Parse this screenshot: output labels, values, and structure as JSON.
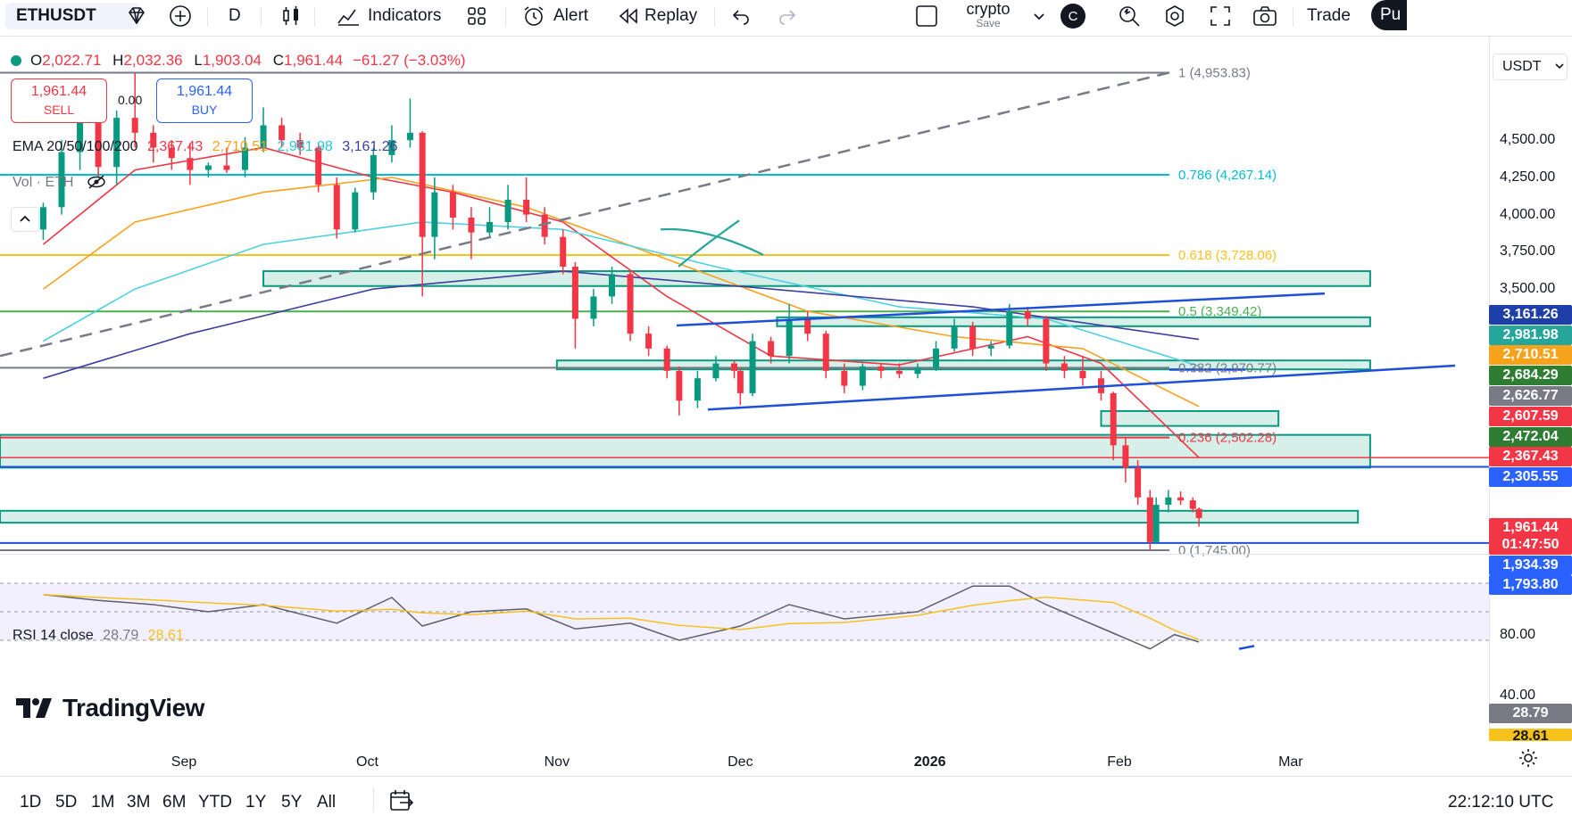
{
  "toolbar": {
    "symbol": "ETHUSDT",
    "interval": "D",
    "indicators_label": "Indicators",
    "alert_label": "Alert",
    "replay_label": "Replay",
    "layout_name": "crypto",
    "layout_status": "Save",
    "avatar_letter": "C",
    "trade_label": "Trade",
    "publish_label": "Pu"
  },
  "legend": {
    "ohlc": {
      "open_label": "O",
      "open": "2,022.71",
      "high_label": "H",
      "high": "2,032.36",
      "low_label": "L",
      "low": "1,903.04",
      "close_label": "C",
      "close": "1,961.44",
      "change": "−61.27 (−3.03%)"
    },
    "sell_price": "1,961.44",
    "sell_label": "SELL",
    "spread": "0.00",
    "buy_price": "1,961.44",
    "buy_label": "BUY",
    "ema_label": "EMA 20/50/100/200",
    "ema_values": [
      "2,367.43",
      "2,710.51",
      "2,981.98",
      "3,161.26"
    ],
    "vol_label": "Vol · ETH",
    "rsi_label": "RSI 14 close",
    "rsi_values": [
      "28.79",
      "28.61"
    ]
  },
  "quote_currency": "USDT",
  "price_ticks": [
    "4,500.00",
    "4,250.00",
    "4,000.00",
    "3,750.00",
    "3,500.00"
  ],
  "price_badges": [
    {
      "label": "3,161.26",
      "color": "#1e3fa8"
    },
    {
      "label": "2,981.98",
      "color": "#26a69a"
    },
    {
      "label": "2,710.51",
      "color": "#f7a21b"
    },
    {
      "label": "2,684.29",
      "color": "#2e7d32"
    },
    {
      "label": "2,626.77",
      "color": "#787b86"
    },
    {
      "label": "2,607.59",
      "color": "#f23645"
    },
    {
      "label": "2,472.04",
      "color": "#2e7d32"
    },
    {
      "label": "2,367.43",
      "color": "#f23645"
    },
    {
      "label": "2,305.55",
      "color": "#2962ff"
    },
    {
      "label": "1,961.44",
      "color": "#f23645"
    },
    {
      "label": "01:47:50",
      "color": "#f23645"
    },
    {
      "label": "1,934.39",
      "color": "#2962ff"
    },
    {
      "label": "1,793.80",
      "color": "#2962ff"
    }
  ],
  "fib_labels": [
    "1 (4,953.83)",
    "0.786 (4,267.14)",
    "0.618 (3,728.06)",
    "0.5 (3,349.42)",
    "0.382 (2,970.77)",
    "0.236 (2,502.28)",
    "0 (1,745.00)"
  ],
  "rsi_ticks": [
    "80.00",
    "40.00"
  ],
  "x_ticks": [
    "Sep",
    "Oct",
    "Nov",
    "Dec",
    "2026",
    "Feb",
    "Mar"
  ],
  "range_buttons": [
    "1D",
    "5D",
    "1M",
    "3M",
    "6M",
    "YTD",
    "1Y",
    "5Y",
    "All"
  ],
  "clock": "22:12:10 UTC",
  "brand": "TradingView",
  "colors": {
    "up": "#089981",
    "down": "#f23645",
    "ema20": "#f23645",
    "ema50": "#f7a21b",
    "ema100": "#4dd0e1",
    "ema200": "#3f3f9f",
    "fib_786": "#00bcd4",
    "fib_618": "#f7c21b",
    "fib_5": "#4caf50",
    "fib_236": "#f23645",
    "trend": "#1e4fd8",
    "zone_fill": "#d6efe9",
    "zone_border": "#089981",
    "rsi_line": "#5d606b",
    "rsi_ma": "#f7c21b"
  },
  "chart_data": {
    "type": "candlestick",
    "symbol": "ETHUSDT",
    "interval": "D",
    "ylim": [
      1700,
      4950
    ],
    "candles": [
      {
        "d": "2025-08-09",
        "o": 3900,
        "h": 4080,
        "l": 3830,
        "c": 4050
      },
      {
        "d": "2025-08-12",
        "o": 4050,
        "h": 4500,
        "l": 4000,
        "c": 4420
      },
      {
        "d": "2025-08-15",
        "o": 4420,
        "h": 4800,
        "l": 4300,
        "c": 4650
      },
      {
        "d": "2025-08-18",
        "o": 4650,
        "h": 4720,
        "l": 4250,
        "c": 4320
      },
      {
        "d": "2025-08-21",
        "o": 4320,
        "h": 4700,
        "l": 4200,
        "c": 4650
      },
      {
        "d": "2025-08-24",
        "o": 4650,
        "h": 4950,
        "l": 4450,
        "c": 4550
      },
      {
        "d": "2025-08-27",
        "o": 4550,
        "h": 4600,
        "l": 4350,
        "c": 4450
      },
      {
        "d": "2025-08-30",
        "o": 4450,
        "h": 4500,
        "l": 4300,
        "c": 4380
      },
      {
        "d": "2025-09-02",
        "o": 4380,
        "h": 4480,
        "l": 4200,
        "c": 4300
      },
      {
        "d": "2025-09-05",
        "o": 4300,
        "h": 4350,
        "l": 4250,
        "c": 4330
      },
      {
        "d": "2025-09-08",
        "o": 4330,
        "h": 4450,
        "l": 4280,
        "c": 4300
      },
      {
        "d": "2025-09-11",
        "o": 4300,
        "h": 4520,
        "l": 4250,
        "c": 4450
      },
      {
        "d": "2025-09-14",
        "o": 4450,
        "h": 4720,
        "l": 4420,
        "c": 4600
      },
      {
        "d": "2025-09-17",
        "o": 4600,
        "h": 4650,
        "l": 4450,
        "c": 4500
      },
      {
        "d": "2025-09-20",
        "o": 4500,
        "h": 4550,
        "l": 4400,
        "c": 4450
      },
      {
        "d": "2025-09-23",
        "o": 4450,
        "h": 4480,
        "l": 4150,
        "c": 4200
      },
      {
        "d": "2025-09-26",
        "o": 4200,
        "h": 4250,
        "l": 3840,
        "c": 3900
      },
      {
        "d": "2025-09-29",
        "o": 3900,
        "h": 4180,
        "l": 3880,
        "c": 4150
      },
      {
        "d": "2025-10-02",
        "o": 4150,
        "h": 4450,
        "l": 4100,
        "c": 4400
      },
      {
        "d": "2025-10-05",
        "o": 4400,
        "h": 4600,
        "l": 4350,
        "c": 4500
      },
      {
        "d": "2025-10-08",
        "o": 4500,
        "h": 4780,
        "l": 4450,
        "c": 4550
      },
      {
        "d": "2025-10-10",
        "o": 4550,
        "h": 4560,
        "l": 3450,
        "c": 3850
      },
      {
        "d": "2025-10-12",
        "o": 3850,
        "h": 4250,
        "l": 3700,
        "c": 4150
      },
      {
        "d": "2025-10-15",
        "o": 4150,
        "h": 4200,
        "l": 3900,
        "c": 3980
      },
      {
        "d": "2025-10-18",
        "o": 3980,
        "h": 4050,
        "l": 3700,
        "c": 3880
      },
      {
        "d": "2025-10-21",
        "o": 3880,
        "h": 4050,
        "l": 3850,
        "c": 3950
      },
      {
        "d": "2025-10-24",
        "o": 3950,
        "h": 4200,
        "l": 3900,
        "c": 4100
      },
      {
        "d": "2025-10-27",
        "o": 4100,
        "h": 4250,
        "l": 3950,
        "c": 4000
      },
      {
        "d": "2025-10-30",
        "o": 4000,
        "h": 4050,
        "l": 3800,
        "c": 3850
      },
      {
        "d": "2025-11-02",
        "o": 3850,
        "h": 3900,
        "l": 3600,
        "c": 3650
      },
      {
        "d": "2025-11-04",
        "o": 3650,
        "h": 3680,
        "l": 3100,
        "c": 3300
      },
      {
        "d": "2025-11-07",
        "o": 3300,
        "h": 3500,
        "l": 3250,
        "c": 3450
      },
      {
        "d": "2025-11-10",
        "o": 3450,
        "h": 3650,
        "l": 3400,
        "c": 3600
      },
      {
        "d": "2025-11-13",
        "o": 3600,
        "h": 3620,
        "l": 3150,
        "c": 3200
      },
      {
        "d": "2025-11-16",
        "o": 3200,
        "h": 3250,
        "l": 3050,
        "c": 3100
      },
      {
        "d": "2025-11-19",
        "o": 3100,
        "h": 3120,
        "l": 2900,
        "c": 2950
      },
      {
        "d": "2025-11-21",
        "o": 2950,
        "h": 2980,
        "l": 2650,
        "c": 2750
      },
      {
        "d": "2025-11-24",
        "o": 2750,
        "h": 2950,
        "l": 2700,
        "c": 2900
      },
      {
        "d": "2025-11-27",
        "o": 2900,
        "h": 3050,
        "l": 2880,
        "c": 3000
      },
      {
        "d": "2025-11-30",
        "o": 3000,
        "h": 3020,
        "l": 2900,
        "c": 2950
      },
      {
        "d": "2025-12-01",
        "o": 2950,
        "h": 2970,
        "l": 2720,
        "c": 2800
      },
      {
        "d": "2025-12-03",
        "o": 2800,
        "h": 3200,
        "l": 2780,
        "c": 3150
      },
      {
        "d": "2025-12-06",
        "o": 3150,
        "h": 3180,
        "l": 3000,
        "c": 3050
      },
      {
        "d": "2025-12-09",
        "o": 3050,
        "h": 3400,
        "l": 3000,
        "c": 3300
      },
      {
        "d": "2025-12-12",
        "o": 3300,
        "h": 3350,
        "l": 3150,
        "c": 3200
      },
      {
        "d": "2025-12-15",
        "o": 3200,
        "h": 3220,
        "l": 2900,
        "c": 2950
      },
      {
        "d": "2025-12-18",
        "o": 2950,
        "h": 3000,
        "l": 2800,
        "c": 2850
      },
      {
        "d": "2025-12-21",
        "o": 2850,
        "h": 3000,
        "l": 2820,
        "c": 2980
      },
      {
        "d": "2025-12-24",
        "o": 2980,
        "h": 3000,
        "l": 2900,
        "c": 2950
      },
      {
        "d": "2025-12-27",
        "o": 2950,
        "h": 3000,
        "l": 2900,
        "c": 2930
      },
      {
        "d": "2025-12-30",
        "o": 2930,
        "h": 3000,
        "l": 2900,
        "c": 2970
      },
      {
        "d": "2026-01-02",
        "o": 2970,
        "h": 3150,
        "l": 2950,
        "c": 3100
      },
      {
        "d": "2026-01-05",
        "o": 3100,
        "h": 3300,
        "l": 3080,
        "c": 3250
      },
      {
        "d": "2026-01-08",
        "o": 3250,
        "h": 3280,
        "l": 3050,
        "c": 3100
      },
      {
        "d": "2026-01-11",
        "o": 3100,
        "h": 3150,
        "l": 3050,
        "c": 3120
      },
      {
        "d": "2026-01-14",
        "o": 3120,
        "h": 3400,
        "l": 3100,
        "c": 3350
      },
      {
        "d": "2026-01-17",
        "o": 3350,
        "h": 3380,
        "l": 3250,
        "c": 3300
      },
      {
        "d": "2026-01-20",
        "o": 3300,
        "h": 3320,
        "l": 2950,
        "c": 3000
      },
      {
        "d": "2026-01-23",
        "o": 3000,
        "h": 3050,
        "l": 2900,
        "c": 2950
      },
      {
        "d": "2026-01-26",
        "o": 2950,
        "h": 3050,
        "l": 2850,
        "c": 2900
      },
      {
        "d": "2026-01-29",
        "o": 2900,
        "h": 2950,
        "l": 2750,
        "c": 2800
      },
      {
        "d": "2026-01-31",
        "o": 2800,
        "h": 2810,
        "l": 2350,
        "c": 2450
      },
      {
        "d": "2026-02-02",
        "o": 2450,
        "h": 2500,
        "l": 2200,
        "c": 2300
      },
      {
        "d": "2026-02-04",
        "o": 2300,
        "h": 2350,
        "l": 2050,
        "c": 2100
      },
      {
        "d": "2026-02-06",
        "o": 2100,
        "h": 2150,
        "l": 1745,
        "c": 1800
      },
      {
        "d": "2026-02-07",
        "o": 1800,
        "h": 2100,
        "l": 1790,
        "c": 2050
      },
      {
        "d": "2026-02-09",
        "o": 2050,
        "h": 2150,
        "l": 2000,
        "c": 2100
      },
      {
        "d": "2026-02-11",
        "o": 2100,
        "h": 2140,
        "l": 2050,
        "c": 2080
      },
      {
        "d": "2026-02-13",
        "o": 2080,
        "h": 2100,
        "l": 2000,
        "c": 2022.71
      },
      {
        "d": "2026-02-14",
        "o": 2022.71,
        "h": 2032.36,
        "l": 1903.04,
        "c": 1961.44
      }
    ],
    "ema": [
      {
        "name": "EMA 20",
        "last": 2367.43,
        "points": [
          [
            "2025-08-09",
            3800
          ],
          [
            "2025-08-24",
            4300
          ],
          [
            "2025-09-14",
            4450
          ],
          [
            "2025-10-02",
            4250
          ],
          [
            "2025-10-15",
            4150
          ],
          [
            "2025-11-02",
            3950
          ],
          [
            "2025-11-19",
            3450
          ],
          [
            "2025-12-06",
            3050
          ],
          [
            "2025-12-27",
            2990
          ],
          [
            "2026-01-17",
            3180
          ],
          [
            "2026-01-29",
            3000
          ],
          [
            "2026-02-14",
            2367.43
          ]
        ]
      },
      {
        "name": "EMA 50",
        "last": 2710.51,
        "points": [
          [
            "2025-08-09",
            3500
          ],
          [
            "2025-08-24",
            3950
          ],
          [
            "2025-09-14",
            4150
          ],
          [
            "2025-10-05",
            4250
          ],
          [
            "2025-10-27",
            4050
          ],
          [
            "2025-11-19",
            3700
          ],
          [
            "2025-12-12",
            3350
          ],
          [
            "2026-01-05",
            3180
          ],
          [
            "2026-01-26",
            3100
          ],
          [
            "2026-02-14",
            2710.51
          ]
        ]
      },
      {
        "name": "EMA 100",
        "last": 2981.98,
        "points": [
          [
            "2025-08-09",
            3150
          ],
          [
            "2025-08-24",
            3500
          ],
          [
            "2025-09-14",
            3800
          ],
          [
            "2025-10-10",
            3950
          ],
          [
            "2025-11-02",
            3900
          ],
          [
            "2025-11-27",
            3650
          ],
          [
            "2025-12-27",
            3380
          ],
          [
            "2026-01-20",
            3300
          ],
          [
            "2026-02-14",
            2981.98
          ]
        ]
      },
      {
        "name": "EMA 200",
        "last": 3161.26,
        "points": [
          [
            "2025-08-09",
            2900
          ],
          [
            "2025-09-02",
            3200
          ],
          [
            "2025-10-02",
            3500
          ],
          [
            "2025-11-02",
            3620
          ],
          [
            "2025-12-06",
            3500
          ],
          [
            "2026-01-08",
            3380
          ],
          [
            "2026-02-14",
            3161.26
          ]
        ]
      }
    ],
    "fib_levels": [
      {
        "ratio": "1",
        "price": 4953.83
      },
      {
        "ratio": "0.786",
        "price": 4267.14
      },
      {
        "ratio": "0.618",
        "price": 3728.06
      },
      {
        "ratio": "0.5",
        "price": 3349.42
      },
      {
        "ratio": "0.382",
        "price": 2970.77
      },
      {
        "ratio": "0.236",
        "price": 2502.28
      },
      {
        "ratio": "0",
        "price": 1745.0
      }
    ],
    "rsi": {
      "ylim": [
        20,
        90
      ],
      "last": 28.79,
      "ma_last": 28.61,
      "values": [
        [
          "2025-08-09",
          62
        ],
        [
          "2025-08-18",
          58
        ],
        [
          "2025-08-27",
          55
        ],
        [
          "2025-09-05",
          50
        ],
        [
          "2025-09-14",
          55
        ],
        [
          "2025-09-26",
          42
        ],
        [
          "2025-10-05",
          60
        ],
        [
          "2025-10-10",
          40
        ],
        [
          "2025-10-18",
          50
        ],
        [
          "2025-10-27",
          52
        ],
        [
          "2025-11-04",
          38
        ],
        [
          "2025-11-13",
          42
        ],
        [
          "2025-11-21",
          30
        ],
        [
          "2025-12-01",
          40
        ],
        [
          "2025-12-09",
          55
        ],
        [
          "2025-12-18",
          45
        ],
        [
          "2025-12-30",
          50
        ],
        [
          "2026-01-08",
          68
        ],
        [
          "2026-01-14",
          68
        ],
        [
          "2026-01-20",
          55
        ],
        [
          "2026-01-31",
          35
        ],
        [
          "2026-02-06",
          24
        ],
        [
          "2026-02-10",
          34
        ],
        [
          "2026-02-14",
          28.79
        ]
      ]
    }
  }
}
